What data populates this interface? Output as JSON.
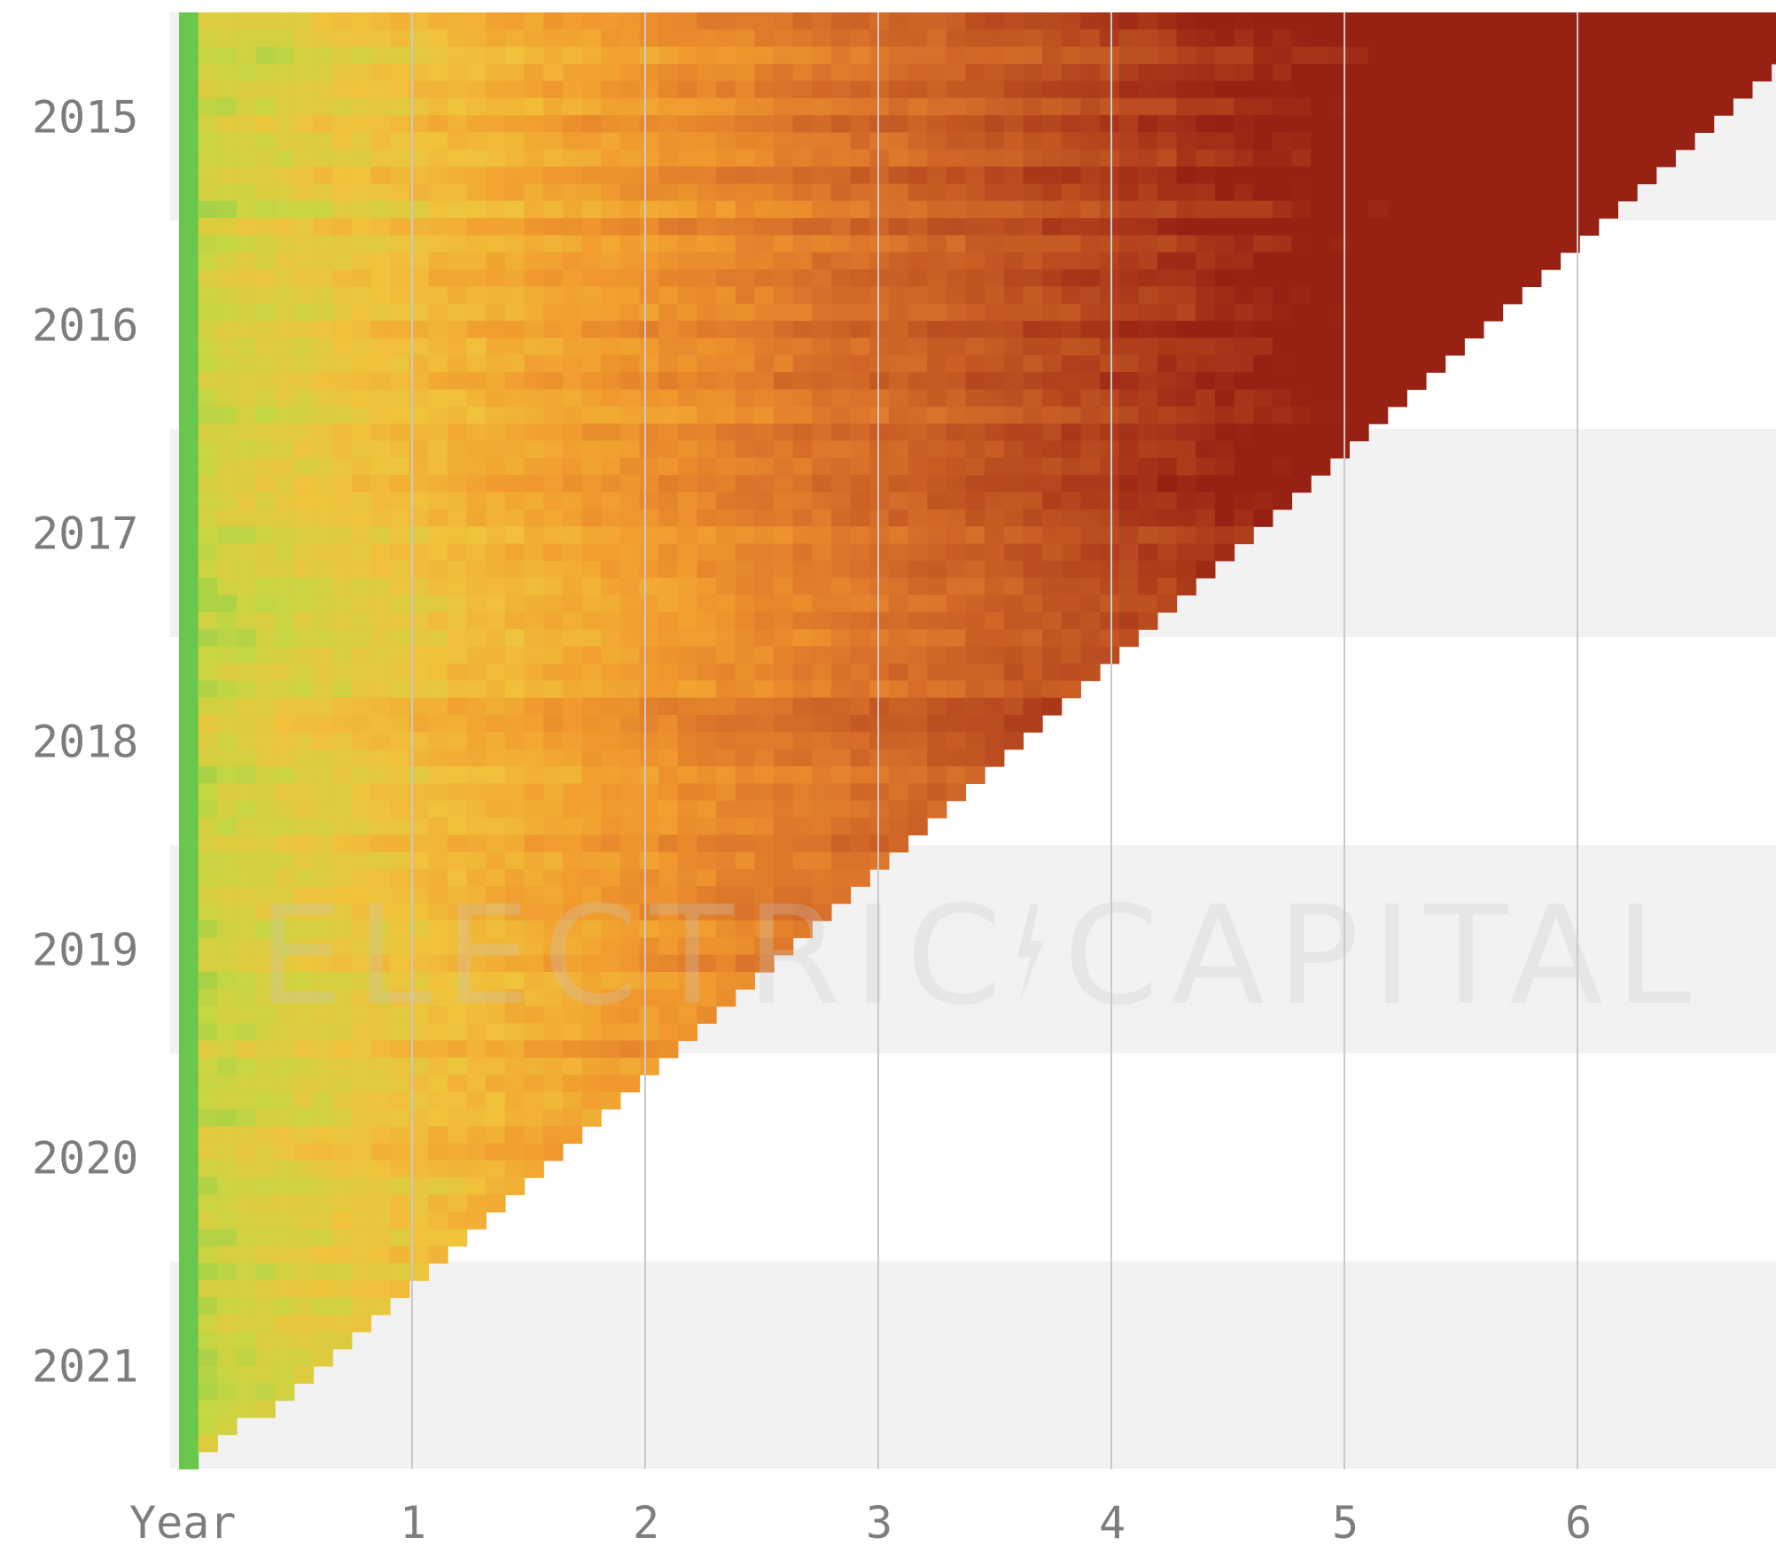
{
  "watermark": {
    "left": "ELECTRIC",
    "right": "CAPITAL"
  },
  "chart_data": {
    "type": "heatmap",
    "title": "",
    "xlabel": "",
    "ylabel": "",
    "x_ticks": [
      "Year",
      "1",
      "2",
      "3",
      "4",
      "5",
      "6"
    ],
    "x_tick_values": [
      0,
      1,
      2,
      3,
      4,
      5,
      6
    ],
    "y_ticks": [
      "2015",
      "2016",
      "2017",
      "2018",
      "2019",
      "2020",
      "2021"
    ],
    "y_tick_values": [
      2015,
      2016,
      2017,
      2018,
      2019,
      2020,
      2021
    ],
    "cohort_start": 2014.5,
    "cohort_end": 2021.58,
    "cohort_step_months": 1,
    "cohort_rows": 85,
    "x_range_years": [
      0,
      6.78
    ],
    "value_range": [
      0,
      1
    ],
    "grid": true,
    "colors": {
      "scale": [
        "#5fc44e",
        "#c7d643",
        "#f1c23a",
        "#f19a2e",
        "#d9702a",
        "#b84a1f",
        "#931c12"
      ],
      "band": "#f2f2f2",
      "gridline": "#c9c9c9",
      "tick_text": "#7d7d7d"
    },
    "year_bands_shaded": [
      2015,
      2017,
      2019,
      2021
    ],
    "description_of_values": "retention fraction per monthly cohort by years since first commit; green (year 0) high, dark red (older) low"
  }
}
